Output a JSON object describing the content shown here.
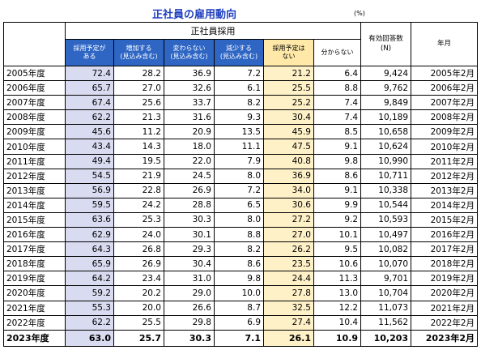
{
  "title": "正社員の雇用動向",
  "unit": "(%)",
  "header": {
    "group": "正社員採用",
    "columns": [
      "採用予定が\nある",
      "増加する\n(見込み含む)",
      "変わらない\n(見込み含む)",
      "減少する\n(見込み含む)",
      "採用予定は\nない",
      "分からない"
    ],
    "responses": "有効回答数\n(N)",
    "yearmonth": "年月"
  },
  "rows": [
    {
      "year": "2005年度",
      "v": [
        "72.4",
        "28.2",
        "36.9",
        "7.2",
        "21.2",
        "6.4"
      ],
      "n": "9,424",
      "ym": "2005年2月"
    },
    {
      "year": "2006年度",
      "v": [
        "65.7",
        "27.0",
        "32.6",
        "6.1",
        "25.5",
        "8.8"
      ],
      "n": "9,762",
      "ym": "2006年2月"
    },
    {
      "year": "2007年度",
      "v": [
        "67.4",
        "25.6",
        "33.7",
        "8.2",
        "25.2",
        "7.4"
      ],
      "n": "9,849",
      "ym": "2007年2月"
    },
    {
      "year": "2008年度",
      "v": [
        "62.2",
        "21.3",
        "31.6",
        "9.3",
        "30.4",
        "7.4"
      ],
      "n": "10,189",
      "ym": "2008年2月"
    },
    {
      "year": "2009年度",
      "v": [
        "45.6",
        "11.2",
        "20.9",
        "13.5",
        "45.9",
        "8.5"
      ],
      "n": "10,658",
      "ym": "2009年2月"
    },
    {
      "year": "2010年度",
      "v": [
        "43.4",
        "14.3",
        "18.0",
        "11.1",
        "47.5",
        "9.1"
      ],
      "n": "10,624",
      "ym": "2010年2月"
    },
    {
      "year": "2011年度",
      "v": [
        "49.4",
        "19.5",
        "22.0",
        "7.9",
        "40.8",
        "9.8"
      ],
      "n": "10,990",
      "ym": "2011年2月"
    },
    {
      "year": "2012年度",
      "v": [
        "54.5",
        "21.9",
        "24.5",
        "8.0",
        "36.9",
        "8.6"
      ],
      "n": "10,711",
      "ym": "2012年2月"
    },
    {
      "year": "2013年度",
      "v": [
        "56.9",
        "22.8",
        "26.9",
        "7.2",
        "34.0",
        "9.1"
      ],
      "n": "10,338",
      "ym": "2013年2月"
    },
    {
      "year": "2014年度",
      "v": [
        "59.5",
        "24.2",
        "28.8",
        "6.5",
        "30.6",
        "9.9"
      ],
      "n": "10,544",
      "ym": "2014年2月"
    },
    {
      "year": "2015年度",
      "v": [
        "63.6",
        "25.3",
        "30.3",
        "8.0",
        "27.2",
        "9.2"
      ],
      "n": "10,593",
      "ym": "2015年2月"
    },
    {
      "year": "2016年度",
      "v": [
        "62.9",
        "24.0",
        "30.1",
        "8.8",
        "27.0",
        "10.1"
      ],
      "n": "10,497",
      "ym": "2016年2月"
    },
    {
      "year": "2017年度",
      "v": [
        "64.3",
        "26.8",
        "29.3",
        "8.2",
        "26.2",
        "9.5"
      ],
      "n": "10,082",
      "ym": "2017年2月"
    },
    {
      "year": "2018年度",
      "v": [
        "65.9",
        "26.9",
        "30.4",
        "8.6",
        "23.5",
        "10.6"
      ],
      "n": "10,070",
      "ym": "2018年2月"
    },
    {
      "year": "2019年度",
      "v": [
        "64.2",
        "23.4",
        "31.0",
        "9.8",
        "24.4",
        "11.3"
      ],
      "n": "9,701",
      "ym": "2019年2月"
    },
    {
      "year": "2020年度",
      "v": [
        "59.2",
        "20.2",
        "29.0",
        "10.0",
        "27.8",
        "13.0"
      ],
      "n": "10,704",
      "ym": "2020年2月"
    },
    {
      "year": "2021年度",
      "v": [
        "55.3",
        "20.0",
        "26.6",
        "8.7",
        "32.5",
        "12.2"
      ],
      "n": "11,073",
      "ym": "2021年2月"
    },
    {
      "year": "2022年度",
      "v": [
        "62.2",
        "25.5",
        "29.8",
        "6.9",
        "27.4",
        "10.4"
      ],
      "n": "11,562",
      "ym": "2022年2月"
    },
    {
      "year": "2023年度",
      "v": [
        "63.0",
        "25.7",
        "30.3",
        "7.1",
        "26.1",
        "10.9"
      ],
      "n": "10,203",
      "ym": "2023年2月"
    }
  ]
}
